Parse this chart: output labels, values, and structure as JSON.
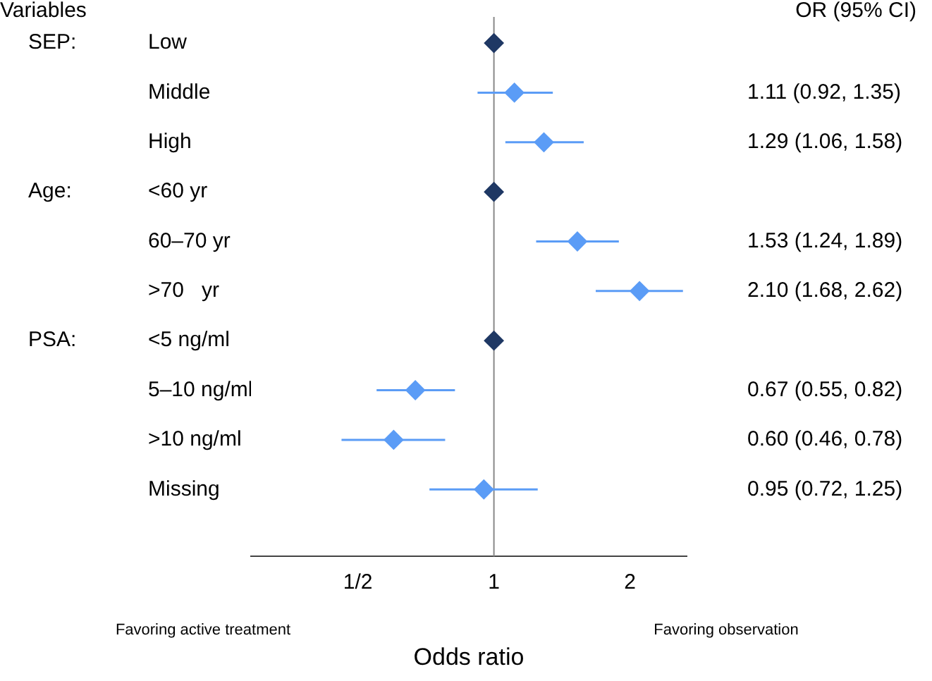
{
  "chart_data": {
    "type": "scatter",
    "orientation": "horizontal",
    "xlabel": "Odds ratio",
    "categories": [
      "Low",
      "Middle",
      "High",
      "<60 yr",
      "60–70 yr",
      ">70   yr",
      "<5 ng/ml",
      "5–10 ng/ml",
      ">10 ng/ml",
      "Missing"
    ],
    "values": [
      1,
      1.11,
      1.29,
      1,
      1.53,
      2.1,
      1,
      0.67,
      0.6,
      0.95
    ],
    "errors": [
      null,
      [
        0.92,
        1.35
      ],
      [
        1.06,
        1.58
      ],
      null,
      [
        1.24,
        1.89
      ],
      [
        1.68,
        2.62
      ],
      null,
      [
        0.55,
        0.82
      ],
      [
        0.46,
        0.78
      ],
      [
        0.72,
        1.25
      ]
    ],
    "colors": [
      "#1f3864",
      "#5b9cf6",
      "#5b9cf6",
      "#1f3864",
      "#5b9cf6",
      "#5b9cf6",
      "#1f3864",
      "#5b9cf6",
      "#5b9cf6",
      "#5b9cf6"
    ],
    "value_labels": [
      null,
      "1.11 (0.92, 1.35)",
      "1.29 (1.06, 1.58)",
      null,
      "1.53 (1.24, 1.89)",
      "2.10 (1.68, 2.62)",
      null,
      "0.67 (0.55, 0.82)",
      "0.60 (0.46, 0.78)",
      "0.95 (0.72, 1.25)"
    ],
    "marker": "diamond",
    "log": "x",
    "grid": false,
    "legend": false,
    "xlim": [
      0.29,
      2.67
    ],
    "xticks": [
      {
        "value": 0.5,
        "label": "1/2"
      },
      1,
      2
    ],
    "ref_lines": [
      {
        "axis": "x",
        "value": 1,
        "color": "#888888"
      }
    ],
    "annotations": [
      "Variables",
      "OR (95% CI)",
      "Favoring active treatment",
      "Favoring observation",
      "SEP:",
      "Age:",
      "PSA:"
    ]
  }
}
